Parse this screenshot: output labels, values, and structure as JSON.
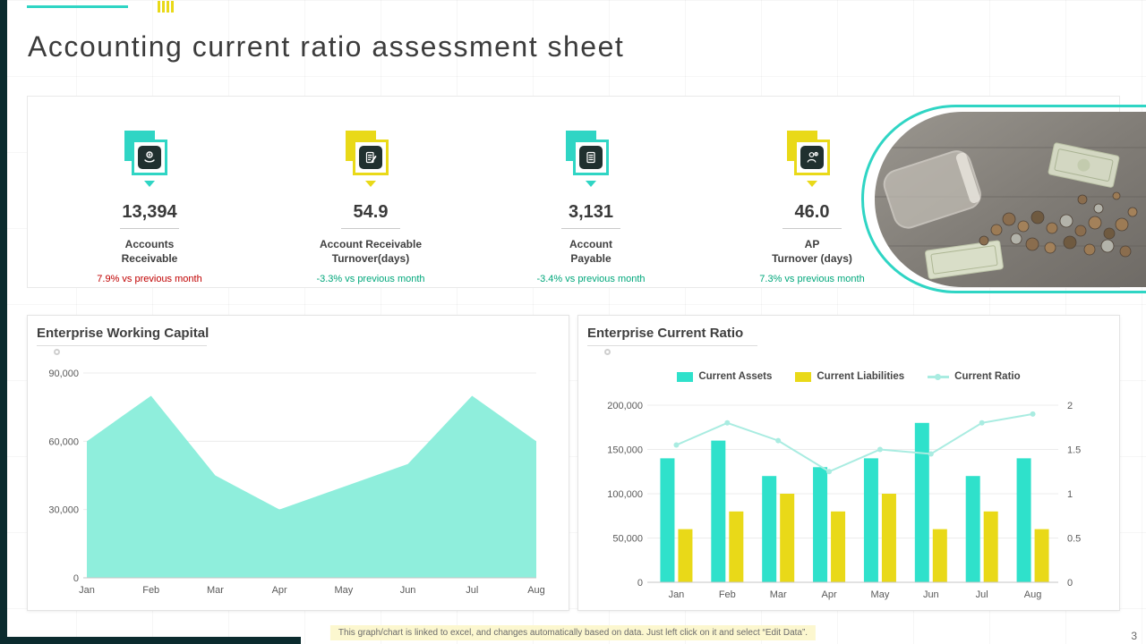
{
  "slide": {
    "title": "Accounting current ratio assessment sheet",
    "page_number": "3",
    "footer_note": "This graph/chart is linked to excel, and changes automatically based on data. Just left click on it and select “Edit Data”."
  },
  "colors": {
    "accent_teal": "#2FD5C4",
    "accent_yellow": "#E9D918",
    "area_fill": "#8FEEDC",
    "assets_bar": "#2FE1CB",
    "liabilities_bar": "#E9D918",
    "ratio_line": "#A9ECE1",
    "delta_red": "#C00000",
    "delta_green": "#00A77B",
    "edge_dark": "#0B2B2E"
  },
  "kpis": [
    {
      "icon": "hand-coin-icon",
      "value": "13,394",
      "label_line1": "Accounts",
      "label_line2": "Receivable",
      "delta": "7.9% vs previous month"
    },
    {
      "icon": "invoice-pen-icon",
      "value": "54.9",
      "label_line1": "Account Receivable",
      "label_line2": "Turnover(days)",
      "delta": "-3.3% vs previous month"
    },
    {
      "icon": "document-icon",
      "value": "3,131",
      "label_line1": "Account",
      "label_line2": "Payable",
      "delta": "-3.4% vs previous month"
    },
    {
      "icon": "person-money-icon",
      "value": "46.0",
      "label_line1": "AP",
      "label_line2": "Turnover (days)",
      "delta": "7.3% vs previous month"
    }
  ],
  "chart_data": [
    {
      "type": "area",
      "title": "Enterprise Working Capital",
      "x": [
        "Jan",
        "Feb",
        "Mar",
        "Apr",
        "May",
        "Jun",
        "Jul",
        "Aug"
      ],
      "values": [
        60000,
        80000,
        45000,
        30000,
        40000,
        50000,
        80000,
        60000
      ],
      "ylim": [
        0,
        90000
      ],
      "ytick_labels": [
        "0",
        "30,000",
        "60,000",
        "90,000"
      ],
      "grid": true,
      "fill_color": "#8FEEDC",
      "legend_position": "none"
    },
    {
      "type": "bar+line",
      "title": "Enterprise Current Ratio",
      "x": [
        "Jan",
        "Feb",
        "Mar",
        "Apr",
        "May",
        "Jun",
        "Jul",
        "Aug"
      ],
      "series": [
        {
          "name": "Current Assets",
          "type": "bar",
          "color": "#2FE1CB",
          "values": [
            140000,
            160000,
            120000,
            130000,
            140000,
            180000,
            120000,
            140000
          ]
        },
        {
          "name": "Current Liabilities",
          "type": "bar",
          "color": "#E9D918",
          "values": [
            60000,
            80000,
            100000,
            80000,
            100000,
            60000,
            80000,
            60000
          ]
        },
        {
          "name": "Current Ratio",
          "type": "line",
          "axis": "right",
          "color": "#A9ECE1",
          "values": [
            1.55,
            1.8,
            1.6,
            1.25,
            1.5,
            1.45,
            1.8,
            1.9
          ]
        }
      ],
      "ylim_left": [
        0,
        200000
      ],
      "ytick_labels_left": [
        "0",
        "50,000",
        "100,000",
        "150,000",
        "200,000"
      ],
      "ylim_right": [
        0,
        2
      ],
      "ytick_labels_right": [
        "0",
        "0.5",
        "1",
        "1.5",
        "2"
      ],
      "grid": true,
      "legend_position": "top"
    }
  ]
}
